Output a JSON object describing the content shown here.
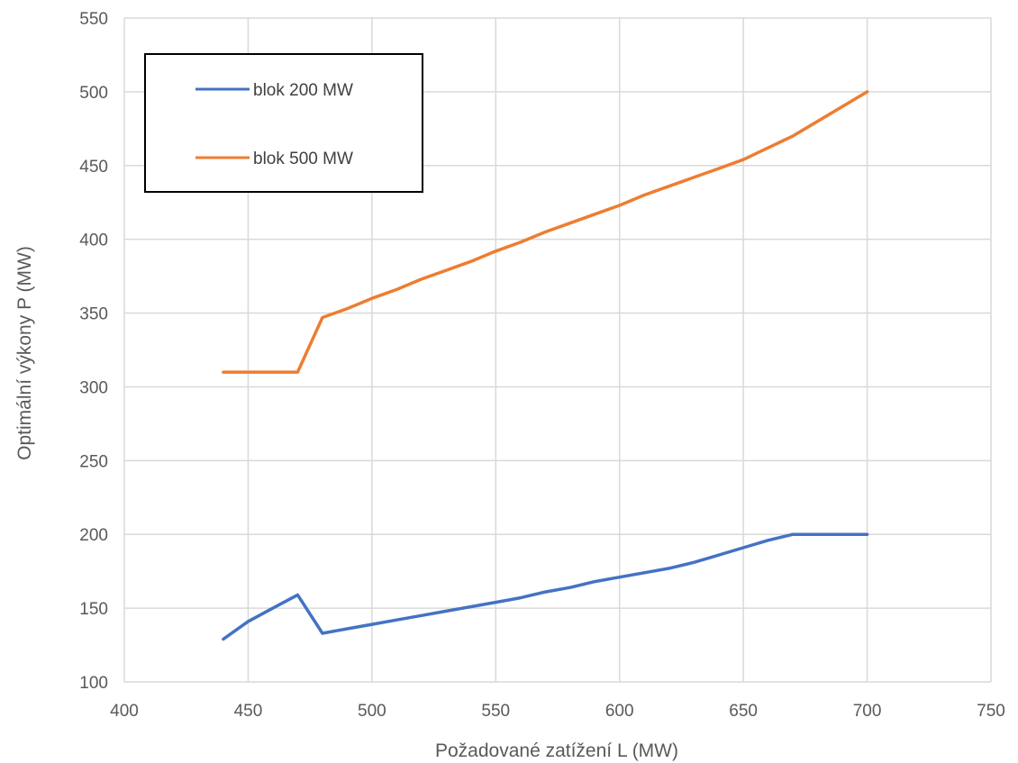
{
  "chart_data": {
    "type": "line",
    "xlabel": "Požadované zatížení L (MW)",
    "ylabel": "Optimální výkony P (MW)",
    "xlim": [
      400,
      750
    ],
    "ylim": [
      100,
      550
    ],
    "xticks": [
      "400",
      "450",
      "500",
      "550",
      "600",
      "650",
      "700",
      "750"
    ],
    "yticks": [
      "100",
      "150",
      "200",
      "250",
      "300",
      "350",
      "400",
      "450",
      "500",
      "550"
    ],
    "grid": true,
    "legend_position": "top-left",
    "x": [
      440,
      450,
      460,
      470,
      480,
      490,
      500,
      510,
      520,
      530,
      540,
      550,
      560,
      570,
      580,
      590,
      600,
      610,
      620,
      630,
      640,
      650,
      660,
      670,
      680,
      690,
      700
    ],
    "series": [
      {
        "name": "blok 200 MW",
        "color": "#4472C4",
        "values": [
          129,
          141,
          150,
          159,
          133,
          136,
          139,
          142,
          145,
          148,
          151,
          154,
          157,
          161,
          164,
          168,
          171,
          174,
          177,
          181,
          186,
          191,
          196,
          200,
          200,
          200,
          200
        ]
      },
      {
        "name": "blok 500 MW",
        "color": "#ED7D31",
        "values": [
          310,
          310,
          310,
          310,
          347,
          353,
          360,
          366,
          373,
          379,
          385,
          392,
          398,
          405,
          411,
          417,
          423,
          430,
          436,
          442,
          448,
          454,
          462,
          470,
          480,
          490,
          500
        ]
      }
    ]
  }
}
